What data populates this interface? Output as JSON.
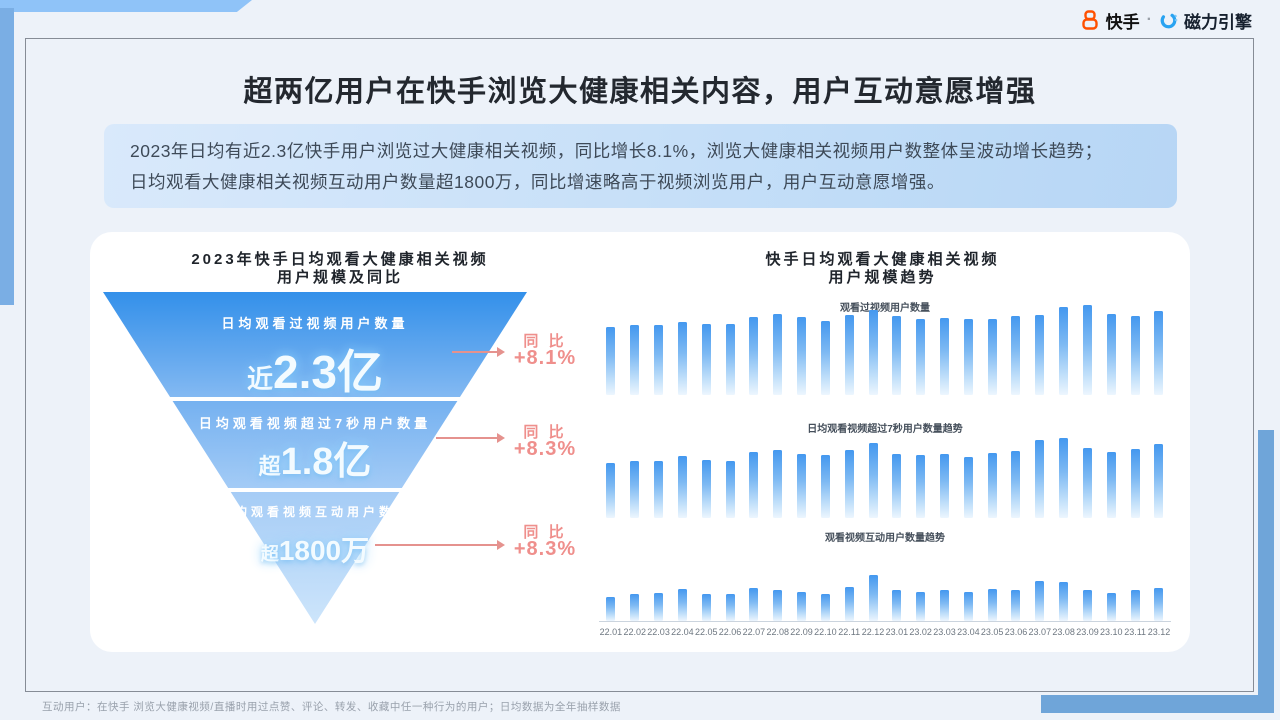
{
  "brand": {
    "kuaishou_label": "快手",
    "separator": "·",
    "cili_label": "磁力引擎",
    "kuaishou_orange": "#FF5000",
    "cili_blue": "#29A3F1"
  },
  "page_title": "超两亿用户在快手浏览大健康相关内容，用户互动意愿增强",
  "summary": {
    "line1": "2023年日均有近2.3亿快手用户浏览过大健康相关视频，同比增长8.1%，浏览大健康相关视频用户数整体呈波动增长趋势；",
    "line2": "日均观看大健康相关视频互动用户数量超1800万，同比增速略高于视频浏览用户，用户互动意愿增强。"
  },
  "funnel": {
    "title_line1": "2023年快手日均观看大健康相关视频",
    "title_line2": "用户规模及同比",
    "levels": [
      {
        "label": "日均观看过视频用户数量",
        "prefix": "近",
        "value": "2.3亿",
        "yoy_label": "同 比",
        "yoy_value": "+8.1%"
      },
      {
        "label": "日均观看视频超过7秒用户数量",
        "prefix": "超",
        "value": "1.8亿",
        "yoy_label": "同 比",
        "yoy_value": "+8.3%"
      },
      {
        "label": "日均观看视频互动用户数量",
        "prefix": "超",
        "value": "1800万",
        "yoy_label": "同 比",
        "yoy_value": "+8.3%"
      }
    ]
  },
  "trend": {
    "title_line1": "快手日均观看大健康相关视频",
    "title_line2": "用户规模趋势"
  },
  "chart_data": [
    {
      "type": "bar",
      "title": "观看过视频用户数量",
      "categories": [
        "22.01",
        "22.02",
        "22.03",
        "22.04",
        "22.05",
        "22.06",
        "22.07",
        "22.08",
        "22.09",
        "22.10",
        "22.11",
        "22.12",
        "23.01",
        "23.02",
        "23.03",
        "23.04",
        "23.05",
        "23.06",
        "23.07",
        "23.08",
        "23.09",
        "23.10",
        "23.11",
        "23.12"
      ],
      "values": [
        68,
        70,
        70,
        73,
        71,
        71,
        78,
        81,
        78,
        74,
        80,
        85,
        79,
        76,
        77,
        76,
        76,
        79,
        80,
        88,
        90,
        81,
        79,
        84
      ],
      "xlabel": "",
      "ylabel": "",
      "ylim": [
        0,
        100
      ],
      "grid": false,
      "legend": "none",
      "note": "axis unlabeled; values are relative heights (index)"
    },
    {
      "type": "bar",
      "title": "日均观看视频超过7秒用户数量趋势",
      "categories": [
        "22.01",
        "22.02",
        "22.03",
        "22.04",
        "22.05",
        "22.06",
        "22.07",
        "22.08",
        "22.09",
        "22.10",
        "22.11",
        "22.12",
        "23.01",
        "23.02",
        "23.03",
        "23.04",
        "23.05",
        "23.06",
        "23.07",
        "23.08",
        "23.09",
        "23.10",
        "23.11",
        "23.12"
      ],
      "values": [
        55,
        57,
        57,
        62,
        58,
        57,
        66,
        68,
        64,
        63,
        68,
        75,
        64,
        63,
        64,
        61,
        65,
        67,
        78,
        80,
        70,
        66,
        69,
        74
      ],
      "xlabel": "",
      "ylabel": "",
      "ylim": [
        0,
        100
      ],
      "grid": false,
      "legend": "none",
      "note": "axis unlabeled; values are relative heights (index)"
    },
    {
      "type": "bar",
      "title": "观看视频互动用户数量趋势",
      "categories": [
        "22.01",
        "22.02",
        "22.03",
        "22.04",
        "22.05",
        "22.06",
        "22.07",
        "22.08",
        "22.09",
        "22.10",
        "22.11",
        "22.12",
        "23.01",
        "23.02",
        "23.03",
        "23.04",
        "23.05",
        "23.06",
        "23.07",
        "23.08",
        "23.09",
        "23.10",
        "23.11",
        "23.12"
      ],
      "values": [
        24,
        27,
        28,
        32,
        27,
        27,
        33,
        31,
        29,
        27,
        34,
        46,
        31,
        29,
        31,
        29,
        32,
        31,
        40,
        39,
        31,
        28,
        31,
        33
      ],
      "xlabel": "",
      "ylabel": "",
      "ylim": [
        0,
        100
      ],
      "grid": false,
      "legend": "none",
      "note": "axis unlabeled; values are relative heights (index)"
    }
  ],
  "footer_note": "互动用户：在快手 浏览大健康视频/直播时用过点赞、评论、转发、收藏中任一种行为的用户；日均数据为全年抽样数据",
  "colors": {
    "accent_blue": "#4498EF",
    "funnel_top_blue": "#3390EA",
    "pink": "#EF8F8C",
    "deco_blue": "#6FA5D9",
    "deco_light_blue": "#8FC3F8",
    "slide_bg": "#EDF2F9",
    "summary_bg": "#C8E0F8"
  }
}
